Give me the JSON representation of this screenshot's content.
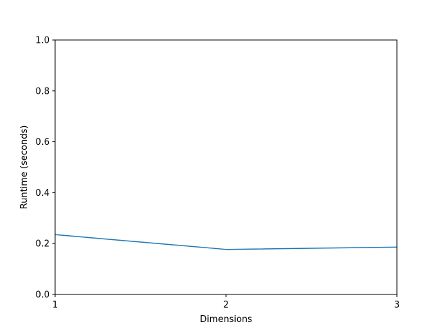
{
  "chart_data": {
    "type": "line",
    "title": "",
    "xlabel": "Dimensions",
    "ylabel": "Runtime (seconds)",
    "x": [
      1,
      2,
      3
    ],
    "series": [
      {
        "values": [
          0.235,
          0.177,
          0.186
        ],
        "color": "#1f77b4"
      }
    ],
    "xlim": [
      1,
      3
    ],
    "ylim": [
      0.0,
      1.0
    ],
    "xticks": [
      1,
      2,
      3
    ],
    "xtick_labels": [
      "1",
      "2",
      "3"
    ],
    "yticks": [
      0.0,
      0.2,
      0.4,
      0.6,
      0.8,
      1.0
    ],
    "ytick_labels": [
      "0.0",
      "0.2",
      "0.4",
      "0.6",
      "0.8",
      "1.0"
    ],
    "grid": false,
    "legend": "none"
  }
}
